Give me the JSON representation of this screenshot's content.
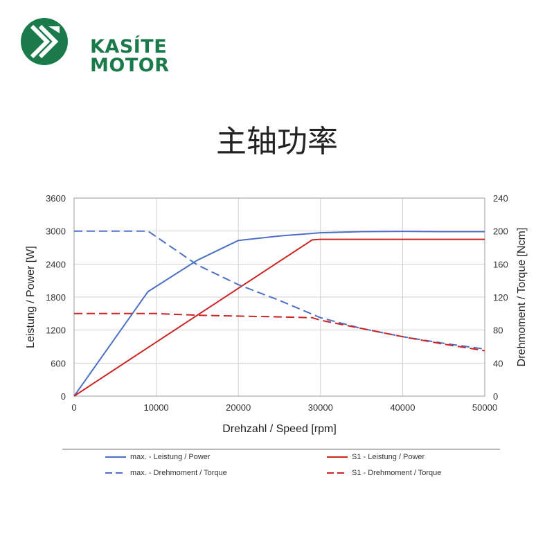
{
  "brand": {
    "name_line1": "KASÍTE",
    "name_line2": "MOTOR",
    "color": "#1a7a4a"
  },
  "headline": "主轴功率",
  "chart_data": {
    "type": "line",
    "xlabel": "Drehzahl / Speed [rpm]",
    "ylabel_left": "Leistung / Power [W]",
    "ylabel_right": "Drehmoment / Torque [Ncm]",
    "xlim": [
      0,
      50000
    ],
    "ylim_left": [
      0,
      3600
    ],
    "ylim_right": [
      0,
      240
    ],
    "x_ticks": [
      0,
      10000,
      20000,
      30000,
      40000,
      50000
    ],
    "y_ticks_left": [
      0,
      600,
      1200,
      1800,
      2400,
      3000,
      3600
    ],
    "y_ticks_right": [
      0,
      40,
      80,
      120,
      160,
      200,
      240
    ],
    "grid": true,
    "series": [
      {
        "name": "max. - Leistung / Power",
        "axis": "left",
        "style": "solid",
        "color": "#4a6fc4",
        "x": [
          0,
          9000,
          15000,
          20000,
          25000,
          30000,
          35000,
          40000,
          45000,
          50000
        ],
        "y": [
          0,
          1900,
          2470,
          2830,
          2910,
          2970,
          2990,
          2995,
          2990,
          2990
        ]
      },
      {
        "name": "S1 - Leistung / Power",
        "axis": "left",
        "style": "solid",
        "color": "#cc2222",
        "x": [
          0,
          10000,
          20000,
          29000,
          30000,
          40000,
          50000
        ],
        "y": [
          0,
          980,
          1960,
          2840,
          2850,
          2850,
          2850
        ]
      },
      {
        "name": "max. - Drehmoment / Torque",
        "axis": "right",
        "style": "dashed",
        "color": "#4a6fc4",
        "x": [
          0,
          9000,
          15000,
          20000,
          25000,
          30000,
          35000,
          40000,
          45000,
          50000
        ],
        "y": [
          200,
          200,
          159,
          135,
          116,
          95,
          82,
          72,
          64,
          57
        ]
      },
      {
        "name": "S1 - Drehmoment / Torque",
        "axis": "right",
        "style": "dashed",
        "color": "#cc2222",
        "x": [
          0,
          10000,
          15000,
          20000,
          25000,
          29000,
          30000,
          35000,
          40000,
          45000,
          50000
        ],
        "y": [
          100,
          100,
          98,
          97,
          96,
          95,
          92,
          82,
          72,
          63,
          55
        ]
      }
    ],
    "legend_position": "bottom"
  }
}
